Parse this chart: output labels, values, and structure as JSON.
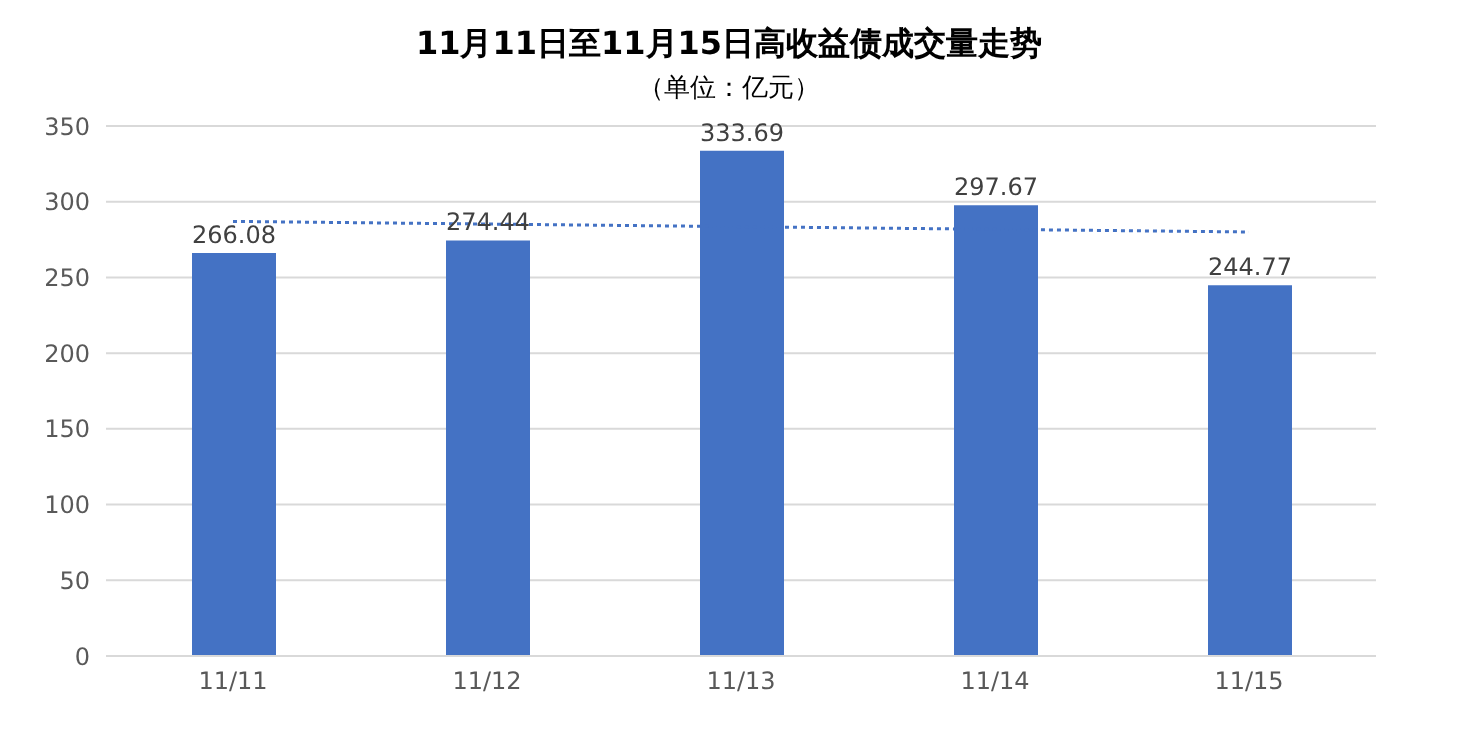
{
  "chart_data": {
    "type": "bar",
    "title": "11月11日至11月15日高收益债成交量走势",
    "subtitle": "（单位：亿元）",
    "categories": [
      "11/11",
      "11/12",
      "11/13",
      "11/14",
      "11/15"
    ],
    "series": [
      {
        "color": "#4472c4",
        "values": [
          266.08,
          274.44,
          333.69,
          297.67,
          244.77
        ],
        "value_labels": [
          "266.08",
          "274.44",
          "333.69",
          "297.67",
          "244.77"
        ]
      },
      {
        "type": "line",
        "color": "#4472c4",
        "line_style": "dotted",
        "x": [
          "11/11",
          "11/15"
        ],
        "values": [
          287,
          280
        ]
      }
    ],
    "ylim": [
      0,
      350
    ],
    "yticks": [
      0,
      50,
      100,
      150,
      200,
      250,
      300,
      350
    ],
    "grid": "y"
  }
}
